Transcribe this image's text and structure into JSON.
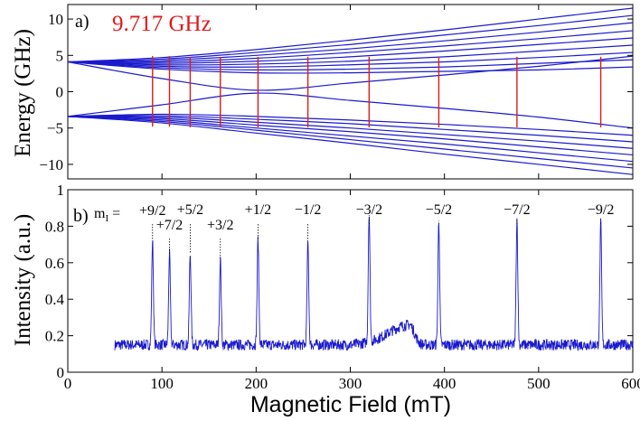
{
  "chart_data": [
    {
      "type": "line",
      "panel_label": "a)",
      "annotation": "9.717 GHz",
      "ylabel": "Energy (GHz)",
      "xlim": [
        0,
        600
      ],
      "ylim": [
        -12,
        12
      ],
      "yticks": [
        -10,
        -5,
        0,
        5,
        10
      ],
      "ytick_labels": [
        "−10",
        "−5",
        "0",
        "5",
        "10"
      ],
      "zero_field_energies": [
        4.1,
        -3.4
      ],
      "upper_manifold_high_field_energy": [
        {
          "mI": "+9/2",
          "x": [
            0,
            100,
            200,
            300,
            400,
            500,
            600
          ],
          "y": [
            4.1,
            4.7,
            5.8,
            7.1,
            8.5,
            10.0,
            11.5
          ]
        },
        {
          "mI": "+7/2",
          "x": [
            0,
            100,
            200,
            300,
            400,
            500,
            600
          ],
          "y": [
            4.1,
            4.5,
            5.4,
            6.5,
            7.8,
            9.1,
            10.5
          ]
        },
        {
          "mI": "+5/2",
          "x": [
            0,
            100,
            200,
            300,
            400,
            500,
            600
          ],
          "y": [
            4.1,
            4.3,
            5.0,
            5.9,
            7.0,
            8.2,
            9.5
          ]
        },
        {
          "mI": "+3/2",
          "x": [
            0,
            100,
            200,
            300,
            400,
            500,
            600
          ],
          "y": [
            4.1,
            4.1,
            4.6,
            5.4,
            6.3,
            7.3,
            8.4
          ]
        },
        {
          "mI": "+1/2",
          "x": [
            0,
            100,
            200,
            300,
            400,
            500,
            600
          ],
          "y": [
            4.1,
            3.9,
            4.2,
            4.8,
            5.6,
            6.5,
            7.4
          ]
        },
        {
          "mI": "−1/2",
          "x": [
            0,
            100,
            200,
            300,
            400,
            500,
            600
          ],
          "y": [
            4.1,
            3.7,
            3.8,
            4.2,
            4.8,
            5.6,
            6.4
          ]
        },
        {
          "mI": "−3/2",
          "x": [
            0,
            100,
            200,
            300,
            400,
            500,
            600
          ],
          "y": [
            4.1,
            3.5,
            3.4,
            3.7,
            4.1,
            4.7,
            5.4
          ]
        },
        {
          "mI": "−5/2",
          "x": [
            0,
            100,
            200,
            300,
            400,
            500,
            600
          ],
          "y": [
            4.1,
            3.3,
            3.0,
            3.1,
            3.4,
            3.9,
            4.4
          ]
        },
        {
          "mI": "−7/2",
          "x": [
            0,
            100,
            200,
            300,
            400,
            500,
            600
          ],
          "y": [
            4.1,
            3.1,
            2.6,
            2.6,
            2.8,
            3.0,
            3.4
          ]
        },
        {
          "mI": "−9/2 (upper)",
          "x": [
            0,
            100,
            200,
            300,
            400,
            500,
            600
          ],
          "y": [
            4.1,
            1.8,
            0.2,
            1.2,
            2.3,
            3.5,
            4.9
          ]
        }
      ],
      "lower_manifold": [
        {
          "x": [
            0,
            100,
            200,
            300,
            400,
            500,
            600
          ],
          "y": [
            -3.4,
            -1.8,
            -0.2,
            -1.2,
            -2.3,
            -3.5,
            -5.0
          ]
        },
        {
          "x": [
            0,
            100,
            200,
            300,
            400,
            500,
            600
          ],
          "y": [
            -3.4,
            -3.1,
            -3.4,
            -3.9,
            -4.5,
            -5.2,
            -6.0
          ]
        },
        {
          "x": [
            0,
            100,
            200,
            300,
            400,
            500,
            600
          ],
          "y": [
            -3.4,
            -3.3,
            -3.8,
            -4.4,
            -5.2,
            -6.0,
            -6.9
          ]
        },
        {
          "x": [
            0,
            100,
            200,
            300,
            400,
            500,
            600
          ],
          "y": [
            -3.4,
            -3.5,
            -4.2,
            -5.0,
            -5.9,
            -6.8,
            -7.8
          ]
        },
        {
          "x": [
            0,
            100,
            200,
            300,
            400,
            500,
            600
          ],
          "y": [
            -3.4,
            -3.7,
            -4.6,
            -5.5,
            -6.5,
            -7.6,
            -8.7
          ]
        },
        {
          "x": [
            0,
            100,
            200,
            300,
            400,
            500,
            600
          ],
          "y": [
            -3.4,
            -3.9,
            -5.0,
            -6.1,
            -7.2,
            -8.4,
            -9.6
          ]
        },
        {
          "x": [
            0,
            100,
            200,
            300,
            400,
            500,
            600
          ],
          "y": [
            -3.4,
            -4.1,
            -5.3,
            -6.6,
            -7.9,
            -9.2,
            -10.5
          ]
        },
        {
          "x": [
            0,
            100,
            200,
            300,
            400,
            500,
            600
          ],
          "y": [
            -3.4,
            -4.3,
            -5.7,
            -7.1,
            -8.6,
            -10.0,
            -11.4
          ]
        }
      ],
      "transition_fields_mT": [
        90,
        108,
        130,
        162,
        202,
        255,
        320,
        394,
        477,
        566
      ],
      "transition_energy_span": [
        [
          -4.8,
          4.9
        ],
        [
          -4.8,
          4.9
        ],
        [
          -4.9,
          4.8
        ],
        [
          -4.9,
          4.8
        ],
        [
          -4.9,
          4.8
        ],
        [
          -4.9,
          4.8
        ],
        [
          -4.9,
          4.8
        ],
        [
          -4.9,
          4.8
        ],
        [
          -4.9,
          4.8
        ],
        [
          -4.9,
          4.8
        ]
      ],
      "colors": {
        "levels": "#1a1acd",
        "transitions": "#e0191b",
        "annotation": "#e0191b"
      }
    },
    {
      "type": "line",
      "panel_label": "b)",
      "ylabel": "Intensity (a.u.)",
      "xlabel": "Magnetic Field (mT)",
      "xlim": [
        0,
        600
      ],
      "ylim": [
        0,
        1
      ],
      "xticks": [
        0,
        100,
        200,
        300,
        400,
        500,
        600
      ],
      "xtick_labels": [
        "0",
        "100",
        "200",
        "300",
        "400",
        "500",
        "600"
      ],
      "yticks": [
        0,
        0.2,
        0.4,
        0.6,
        0.8,
        1
      ],
      "ytick_labels": [
        "0",
        "0.2",
        "0.4",
        "0.6",
        "0.8",
        "1"
      ],
      "mI_prefix": "m",
      "mI_subscript": "I",
      "mI_equals": " = ",
      "spectrum_range_mT": [
        50,
        600
      ],
      "baseline": 0.15,
      "broad_feature": {
        "center_mT": 363,
        "peak": 0.26
      },
      "peaks": [
        {
          "field_mT": 90,
          "intensity": 0.72,
          "label": "+9/2"
        },
        {
          "field_mT": 108,
          "intensity": 0.65,
          "label": "+7/2"
        },
        {
          "field_mT": 130,
          "intensity": 0.65,
          "label": "+5/2"
        },
        {
          "field_mT": 162,
          "intensity": 0.62,
          "label": "+3/2"
        },
        {
          "field_mT": 202,
          "intensity": 0.73,
          "label": "+1/2"
        },
        {
          "field_mT": 255,
          "intensity": 0.71,
          "label": "−1/2"
        },
        {
          "field_mT": 320,
          "intensity": 0.86,
          "label": "−3/2"
        },
        {
          "field_mT": 394,
          "intensity": 0.83,
          "label": "−5/2"
        },
        {
          "field_mT": 477,
          "intensity": 0.84,
          "label": "−7/2"
        },
        {
          "field_mT": 566,
          "intensity": 0.82,
          "label": "−9/2"
        }
      ],
      "colors": {
        "spectrum": "#1a1acd"
      }
    }
  ]
}
